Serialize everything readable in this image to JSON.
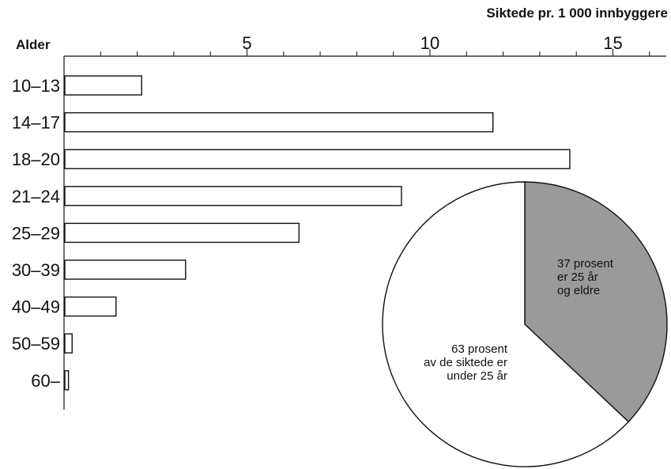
{
  "chart_data": [
    {
      "type": "bar",
      "orientation": "horizontal",
      "title": "Siktede pr. 1 000 innbyggere",
      "ylabel": "Alder",
      "categories": [
        "10-13",
        "14-17",
        "18-20",
        "21-24",
        "25-29",
        "30-39",
        "40-49",
        "50-59",
        "60-"
      ],
      "values": [
        2.1,
        11.7,
        13.8,
        9.2,
        6.4,
        3.3,
        1.4,
        0.2,
        0.1
      ],
      "xlim": [
        0,
        16.5
      ],
      "xticks": [
        5,
        10,
        15
      ],
      "minor_tick_step": 1,
      "colors": {
        "bar_fill": "#ffffff",
        "bar_stroke": "#111111"
      }
    },
    {
      "type": "pie",
      "slices": [
        {
          "label": "37 prosent er 25 år og eldre",
          "value": 37,
          "color": "#9a9a9a",
          "lines": [
            "37 prosent",
            "er 25 år",
            "og eldre"
          ]
        },
        {
          "label": "63 prosent av de siktede er under 25 år",
          "value": 63,
          "color": "#ffffff",
          "lines": [
            "63 prosent",
            "av de siktede er",
            "under 25 år"
          ]
        }
      ]
    }
  ]
}
